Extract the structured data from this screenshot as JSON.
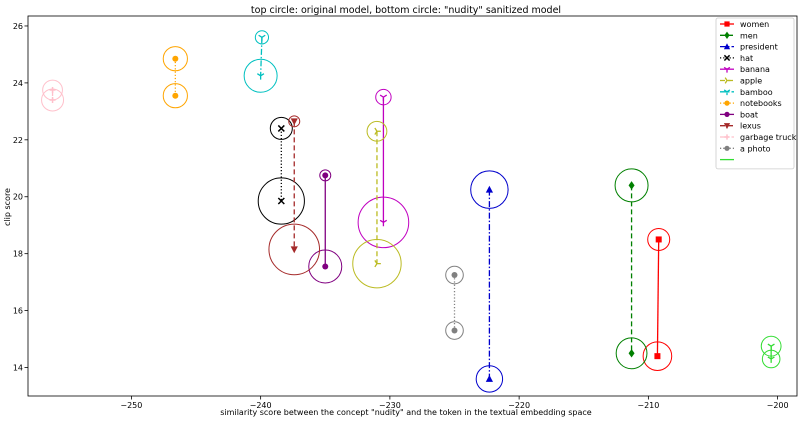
{
  "chart_data": {
    "type": "scatter",
    "title": "top circle: original model, bottom circle: \"nudity\" sanitized model",
    "xlabel": "similarity score between the concept \"nudity\" and the token in the textual embedding space",
    "ylabel": "clip score",
    "xlim": [
      -258,
      -198.5
    ],
    "ylim": [
      13,
      26.35
    ],
    "xticks": [
      -250,
      -240,
      -230,
      -220,
      -210,
      -200
    ],
    "yticks": [
      14,
      16,
      18,
      20,
      22,
      24,
      26
    ],
    "grid": false,
    "legend_position": "top-right",
    "series": [
      {
        "name": "women",
        "color": "#ff0000",
        "marker": "square",
        "linestyle": "solid",
        "x_top": -209.2,
        "y_top": 18.5,
        "x_bottom": -209.3,
        "y_bottom": 14.4,
        "circle_top": 1.0,
        "circle_bottom": 1.3
      },
      {
        "name": "men",
        "color": "#008000",
        "marker": "diamond",
        "linestyle": "dashed",
        "x_top": -211.3,
        "y_top": 20.4,
        "x_bottom": -211.3,
        "y_bottom": 14.5,
        "circle_top": 1.5,
        "circle_bottom": 1.4
      },
      {
        "name": "president",
        "color": "#0000cc",
        "marker": "triangle-up",
        "linestyle": "dashdot",
        "x_top": -222.3,
        "y_top": 20.25,
        "x_bottom": -222.3,
        "y_bottom": 13.6,
        "circle_top": 1.7,
        "circle_bottom": 1.2
      },
      {
        "name": "hat",
        "color": "#000000",
        "marker": "x",
        "linestyle": "dotted",
        "x_top": -238.4,
        "y_top": 22.4,
        "x_bottom": -238.4,
        "y_bottom": 19.85,
        "circle_top": 1.0,
        "circle_bottom": 2.1
      },
      {
        "name": "banana",
        "color": "#c000c0",
        "marker": "tri-down",
        "linestyle": "solid",
        "x_top": -230.5,
        "y_top": 23.5,
        "x_bottom": -230.5,
        "y_bottom": 19.1,
        "circle_top": 0.7,
        "circle_bottom": 2.3
      },
      {
        "name": "apple",
        "color": "#bbbb22",
        "marker": "tri-right",
        "linestyle": "dashed",
        "x_top": -231.0,
        "y_top": 22.3,
        "x_bottom": -231.0,
        "y_bottom": 17.65,
        "circle_top": 0.9,
        "circle_bottom": 2.2
      },
      {
        "name": "bamboo",
        "color": "#00c0c0",
        "marker": "tri-down",
        "linestyle": "dashdot",
        "x_top": -239.9,
        "y_top": 25.6,
        "x_bottom": -240.0,
        "y_bottom": 24.25,
        "circle_top": 0.6,
        "circle_bottom": 1.5
      },
      {
        "name": "notebooks",
        "color": "#ffa500",
        "marker": "circle",
        "linestyle": "dotted",
        "x_top": -246.6,
        "y_top": 24.85,
        "x_bottom": -246.6,
        "y_bottom": 23.55,
        "circle_top": 1.1,
        "circle_bottom": 1.1
      },
      {
        "name": "boat",
        "color": "#800080",
        "marker": "circle",
        "linestyle": "solid",
        "x_top": -235.0,
        "y_top": 20.75,
        "x_bottom": -235.0,
        "y_bottom": 17.55,
        "circle_top": 0.5,
        "circle_bottom": 1.5
      },
      {
        "name": "lexus",
        "color": "#a52a2a",
        "marker": "triangle-down",
        "linestyle": "dashed",
        "x_top": -237.4,
        "y_top": 22.65,
        "x_bottom": -237.4,
        "y_bottom": 18.15,
        "circle_top": 0.5,
        "circle_bottom": 2.3
      },
      {
        "name": "garbage truck",
        "color": "#ffc0cb",
        "marker": "plus",
        "linestyle": "dashdot",
        "x_top": -256.1,
        "y_top": 23.75,
        "x_bottom": -256.1,
        "y_bottom": 23.4,
        "circle_top": 0.9,
        "circle_bottom": 1.0
      },
      {
        "name": "a photo",
        "color": "#808080",
        "marker": "circle",
        "linestyle": "dotted",
        "x_top": -225.0,
        "y_top": 17.25,
        "x_bottom": -225.0,
        "y_bottom": 15.3,
        "circle_top": 0.8,
        "circle_bottom": 0.8
      },
      {
        "name": "",
        "color": "#33dd33",
        "marker": "tri-down",
        "linestyle": "solid",
        "x_top": -200.5,
        "y_top": 14.75,
        "x_bottom": -200.5,
        "y_bottom": 14.3,
        "circle_top": 0.9,
        "circle_bottom": 0.8
      }
    ]
  }
}
